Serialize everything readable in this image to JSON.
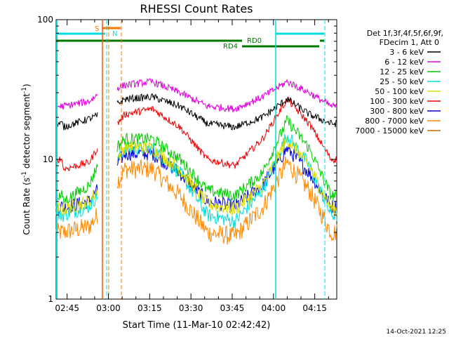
{
  "chart_data": {
    "type": "line",
    "title": "RHESSI Count Rates",
    "xlabel": "Start Time (11-Mar-10 02:42:42)",
    "ylabel": "Count Rate (s⁻¹ detector segment⁻¹)",
    "ylabel_main": "Count Rate (s",
    "ylabel_sup1": "-1",
    "ylabel_mid": " detector segment",
    "ylabel_sup2": "-1",
    "ylabel_end": ")",
    "y_scale": "log",
    "ylim": [
      1,
      100
    ],
    "xlim": [
      "02:41",
      "04:23"
    ],
    "x_ticks": [
      "02:45",
      "03:00",
      "03:15",
      "03:30",
      "03:45",
      "04:00",
      "04:15"
    ],
    "y_ticks": [
      "1",
      "10",
      "100"
    ],
    "legend_header": [
      "Det 1f,3f,4f,5f,6f,9f,",
      "FDecim 1, Att 0"
    ],
    "legend_placement": "right",
    "timestamp": "14-Oct-2021 12:25",
    "attenuator_labels": {
      "S": "S",
      "N": "N",
      "RD0": "RD0",
      "RD4": "RD4"
    },
    "series": [
      {
        "name": "3 - 6 keV",
        "color": "#000000",
        "values": [
          17,
          19.5,
          20.5,
          0,
          27,
          28,
          24,
          18,
          17,
          20,
          27,
          21,
          18
        ]
      },
      {
        "name": "6 - 12 keV",
        "color": "#dd00dd",
        "values": [
          24,
          26,
          29,
          0,
          34,
          36,
          30,
          24,
          23,
          28,
          36,
          30,
          24
        ]
      },
      {
        "name": "12 - 25 keV",
        "color": "#00cc00",
        "values": [
          5,
          6.5,
          9,
          0,
          14,
          14,
          10,
          6,
          5.5,
          8,
          19,
          12,
          5.5
        ]
      },
      {
        "name": "25 - 50 keV",
        "color": "#00dddd",
        "values": [
          4,
          4.6,
          5.5,
          0,
          12,
          12,
          8,
          4,
          3.6,
          6,
          15,
          9,
          4
        ]
      },
      {
        "name": "50 - 100 keV",
        "color": "#dddd00",
        "values": [
          4.4,
          5,
          6,
          0,
          12.5,
          12,
          8.5,
          4.8,
          4.4,
          6.5,
          14,
          9,
          4.4
        ]
      },
      {
        "name": "100 - 300 keV",
        "color": "#ee0000",
        "values": [
          8.5,
          9.5,
          12,
          0,
          21,
          23,
          17,
          10,
          9,
          14,
          27,
          18,
          10
        ]
      },
      {
        "name": "300 - 800 keV",
        "color": "#0000dd",
        "values": [
          4.5,
          5,
          6,
          0,
          11,
          11,
          8,
          5,
          4.6,
          6.5,
          12,
          8,
          4.6
        ]
      },
      {
        "name": "800 - 7000 keV",
        "color": "#ff8800",
        "values": [
          3,
          3.3,
          4,
          0,
          8.5,
          8.5,
          5.5,
          3,
          2.8,
          4.5,
          9.5,
          6,
          3
        ]
      },
      {
        "name": "7000 - 15000 keV",
        "color": "#cc6600",
        "values": []
      }
    ],
    "profile_minutes": [
      2.5,
      12,
      15,
      22,
      25,
      35,
      45,
      55,
      65,
      75,
      84,
      92,
      100
    ]
  }
}
